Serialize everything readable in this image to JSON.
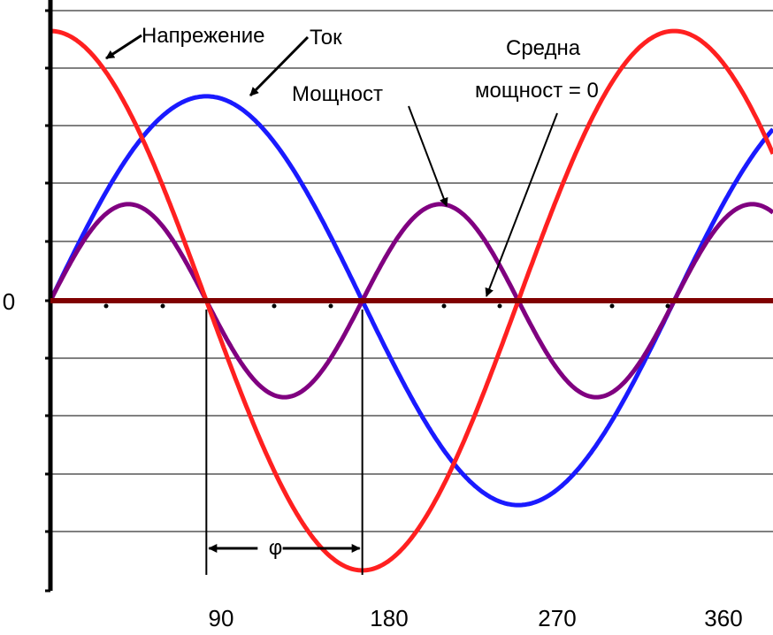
{
  "chart_data": {
    "type": "line",
    "title": "",
    "xlabel": "",
    "ylabel": "",
    "xlim": [
      0,
      360
    ],
    "ylim": [
      -1.0,
      1.0
    ],
    "x_tick_labels": [
      "90",
      "180",
      "270",
      "360"
    ],
    "x_ticks": [
      90,
      180,
      270,
      360
    ],
    "y_tick_label": "0",
    "grid": true,
    "series": [
      {
        "name": "Напрежение",
        "function": "cos(x - 0)",
        "amplitude": 0.95,
        "phase_deg": 0,
        "color": "#ff2020"
      },
      {
        "name": "Ток",
        "function": "sin(x)",
        "amplitude": 0.72,
        "phase_deg": 90,
        "color": "#1a1aff"
      },
      {
        "name": "Мощност",
        "function": "sin(2x)",
        "amplitude": 0.34,
        "color": "#800080"
      },
      {
        "name": "Средна мощност = 0",
        "constant": 0,
        "color": "#800000"
      }
    ],
    "annotations": {
      "voltage": "Напрежение",
      "current": "Ток",
      "power": "Мощност",
      "avg_power_line1": "Средна",
      "avg_power_line2": "мощност = 0",
      "phi": "φ"
    },
    "phi_interval_deg": [
      90,
      180
    ]
  }
}
